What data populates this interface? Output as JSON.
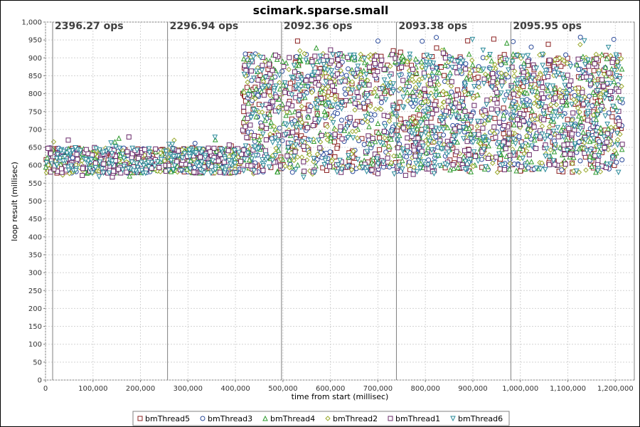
{
  "chart_data": {
    "type": "scatter",
    "title": "scimark.sparse.small",
    "xlabel": "time from start (millisec)",
    "ylabel": "loop result (millisec)",
    "xlim": [
      0,
      1240000
    ],
    "ylim": [
      0,
      1000
    ],
    "x_ticks": [
      0,
      100000,
      200000,
      300000,
      400000,
      500000,
      600000,
      700000,
      800000,
      900000,
      1000000,
      1100000,
      1200000
    ],
    "x_tick_labels": [
      "0",
      "100,000",
      "200,000",
      "300,000",
      "400,000",
      "500,000",
      "600,000",
      "700,000",
      "800,000",
      "900,000",
      "1,000,000",
      "1,100,000",
      "1,200,000"
    ],
    "y_ticks": [
      0,
      50,
      100,
      150,
      200,
      250,
      300,
      350,
      400,
      450,
      500,
      550,
      600,
      650,
      700,
      750,
      800,
      850,
      900,
      950,
      1000
    ],
    "y_tick_labels": [
      "0",
      "50",
      "100",
      "150",
      "200",
      "250",
      "300",
      "350",
      "400",
      "450",
      "500",
      "550",
      "600",
      "650",
      "700",
      "750",
      "800",
      "850",
      "900",
      "950",
      "1,000"
    ],
    "grid": true,
    "legend_position": "bottom",
    "phase_markers": [
      {
        "x": 15000,
        "label": "2396.27 ops"
      },
      {
        "x": 257000,
        "label": "2296.94 ops"
      },
      {
        "x": 497000,
        "label": "2092.36 ops"
      },
      {
        "x": 739000,
        "label": "2093.38 ops"
      },
      {
        "x": 980000,
        "label": "2095.95 ops"
      }
    ],
    "regions": [
      {
        "x_start": 0,
        "x_end": 415000,
        "y_min": 565,
        "y_max": 680,
        "typical_low": 578,
        "typical_high": 648
      },
      {
        "x_start": 415000,
        "x_end": 1215000,
        "y_min": 565,
        "y_max": 958,
        "typical_low": 580,
        "typical_high": 912
      }
    ],
    "series": [
      {
        "name": "bmThread5",
        "marker": "square",
        "color": "#8b2020"
      },
      {
        "name": "bmThread3",
        "marker": "circle",
        "color": "#2a4a9a"
      },
      {
        "name": "bmThread4",
        "marker": "triangle-up",
        "color": "#2e9a2e"
      },
      {
        "name": "bmThread2",
        "marker": "diamond",
        "color": "#9aaa2e"
      },
      {
        "name": "bmThread1",
        "marker": "square",
        "color": "#6a2a6a"
      },
      {
        "name": "bmThread6",
        "marker": "triangle-down",
        "color": "#2a8a9a"
      }
    ]
  }
}
